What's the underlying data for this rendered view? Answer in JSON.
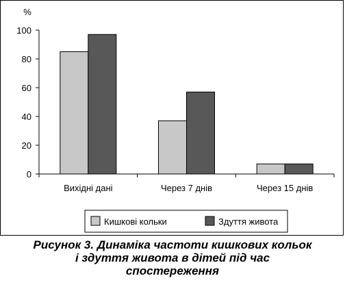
{
  "chart_data": {
    "type": "bar",
    "unit_label": "%",
    "categories": [
      "Вихідні дані",
      "Через 7 днів",
      "Через 15 днів"
    ],
    "series": [
      {
        "name": "Кишкові кольки",
        "values": [
          85,
          37,
          7
        ],
        "color": "#c8c8c8"
      },
      {
        "name": "Здуття живота",
        "values": [
          97,
          57,
          7
        ],
        "color": "#585858"
      }
    ],
    "ylim": [
      0,
      100
    ],
    "yticks": [
      0,
      20,
      40,
      60,
      80,
      100
    ],
    "grid": false,
    "legend_position": "bottom"
  },
  "caption": {
    "line1": "Рисунок 3. Динаміка частоти кишкових кольок",
    "line2": "і здуття живота в дітей під час",
    "line3": "спостереження"
  }
}
